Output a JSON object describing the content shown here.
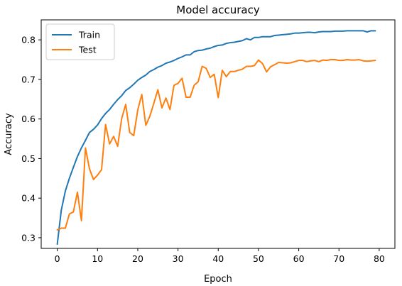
{
  "chart_data": {
    "type": "line",
    "title": "Model accuracy",
    "xlabel": "Epoch",
    "ylabel": "Accuracy",
    "xlim": [
      -4,
      83.9
    ],
    "ylim": [
      0.273,
      0.8505
    ],
    "xticks": [
      0,
      10,
      20,
      30,
      40,
      50,
      60,
      70,
      80
    ],
    "yticks": [
      0.3,
      0.4,
      0.5,
      0.6,
      0.7,
      0.8
    ],
    "ytick_labels": [
      "0.3",
      "0.4",
      "0.5",
      "0.6",
      "0.7",
      "0.8"
    ],
    "grid": false,
    "legend_position": "upper-left",
    "series": [
      {
        "name": "Train",
        "color": "#1f77b4",
        "x": [
          0,
          1,
          2,
          3,
          4,
          5,
          6,
          7,
          8,
          9,
          10,
          11,
          12,
          13,
          14,
          15,
          16,
          17,
          18,
          19,
          20,
          21,
          22,
          23,
          24,
          25,
          26,
          27,
          28,
          29,
          30,
          31,
          32,
          33,
          34,
          35,
          36,
          37,
          38,
          39,
          40,
          41,
          42,
          43,
          44,
          45,
          46,
          47,
          48,
          49,
          50,
          51,
          52,
          53,
          54,
          55,
          56,
          57,
          58,
          59,
          60,
          61,
          62,
          63,
          64,
          65,
          66,
          67,
          68,
          69,
          70,
          71,
          72,
          73,
          74,
          75,
          76,
          77,
          78,
          79
        ],
        "values": [
          0.284,
          0.37,
          0.418,
          0.45,
          0.478,
          0.505,
          0.527,
          0.546,
          0.566,
          0.574,
          0.585,
          0.601,
          0.614,
          0.624,
          0.637,
          0.649,
          0.659,
          0.672,
          0.679,
          0.688,
          0.698,
          0.705,
          0.711,
          0.72,
          0.725,
          0.731,
          0.735,
          0.741,
          0.744,
          0.748,
          0.753,
          0.757,
          0.762,
          0.762,
          0.77,
          0.773,
          0.774,
          0.777,
          0.779,
          0.783,
          0.786,
          0.787,
          0.791,
          0.793,
          0.794,
          0.796,
          0.798,
          0.803,
          0.8,
          0.806,
          0.806,
          0.808,
          0.808,
          0.808,
          0.811,
          0.812,
          0.813,
          0.814,
          0.815,
          0.817,
          0.817,
          0.818,
          0.819,
          0.819,
          0.818,
          0.82,
          0.821,
          0.821,
          0.821,
          0.822,
          0.822,
          0.822,
          0.823,
          0.823,
          0.823,
          0.823,
          0.823,
          0.82,
          0.823,
          0.823
        ]
      },
      {
        "name": "Test",
        "color": "#ff7f0e",
        "x": [
          0,
          1,
          2,
          3,
          4,
          5,
          6,
          7,
          8,
          9,
          10,
          11,
          12,
          13,
          14,
          15,
          16,
          17,
          18,
          19,
          20,
          21,
          22,
          23,
          24,
          25,
          26,
          27,
          28,
          29,
          30,
          31,
          32,
          33,
          34,
          35,
          36,
          37,
          38,
          39,
          40,
          41,
          42,
          43,
          44,
          45,
          46,
          47,
          48,
          49,
          50,
          51,
          52,
          53,
          54,
          55,
          56,
          57,
          58,
          59,
          60,
          61,
          62,
          63,
          64,
          65,
          66,
          67,
          68,
          69,
          70,
          71,
          72,
          73,
          74,
          75,
          76,
          77,
          78,
          79
        ],
        "values": [
          0.32,
          0.324,
          0.324,
          0.36,
          0.365,
          0.415,
          0.343,
          0.527,
          0.474,
          0.447,
          0.458,
          0.472,
          0.586,
          0.537,
          0.556,
          0.531,
          0.601,
          0.637,
          0.566,
          0.558,
          0.623,
          0.662,
          0.584,
          0.607,
          0.64,
          0.674,
          0.628,
          0.653,
          0.624,
          0.685,
          0.69,
          0.703,
          0.655,
          0.655,
          0.685,
          0.694,
          0.733,
          0.728,
          0.705,
          0.713,
          0.654,
          0.723,
          0.707,
          0.72,
          0.72,
          0.723,
          0.726,
          0.733,
          0.733,
          0.735,
          0.749,
          0.74,
          0.719,
          0.732,
          0.737,
          0.743,
          0.742,
          0.741,
          0.742,
          0.745,
          0.748,
          0.748,
          0.745,
          0.747,
          0.748,
          0.745,
          0.749,
          0.748,
          0.75,
          0.75,
          0.748,
          0.748,
          0.75,
          0.749,
          0.749,
          0.75,
          0.747,
          0.746,
          0.747,
          0.748
        ]
      }
    ]
  }
}
